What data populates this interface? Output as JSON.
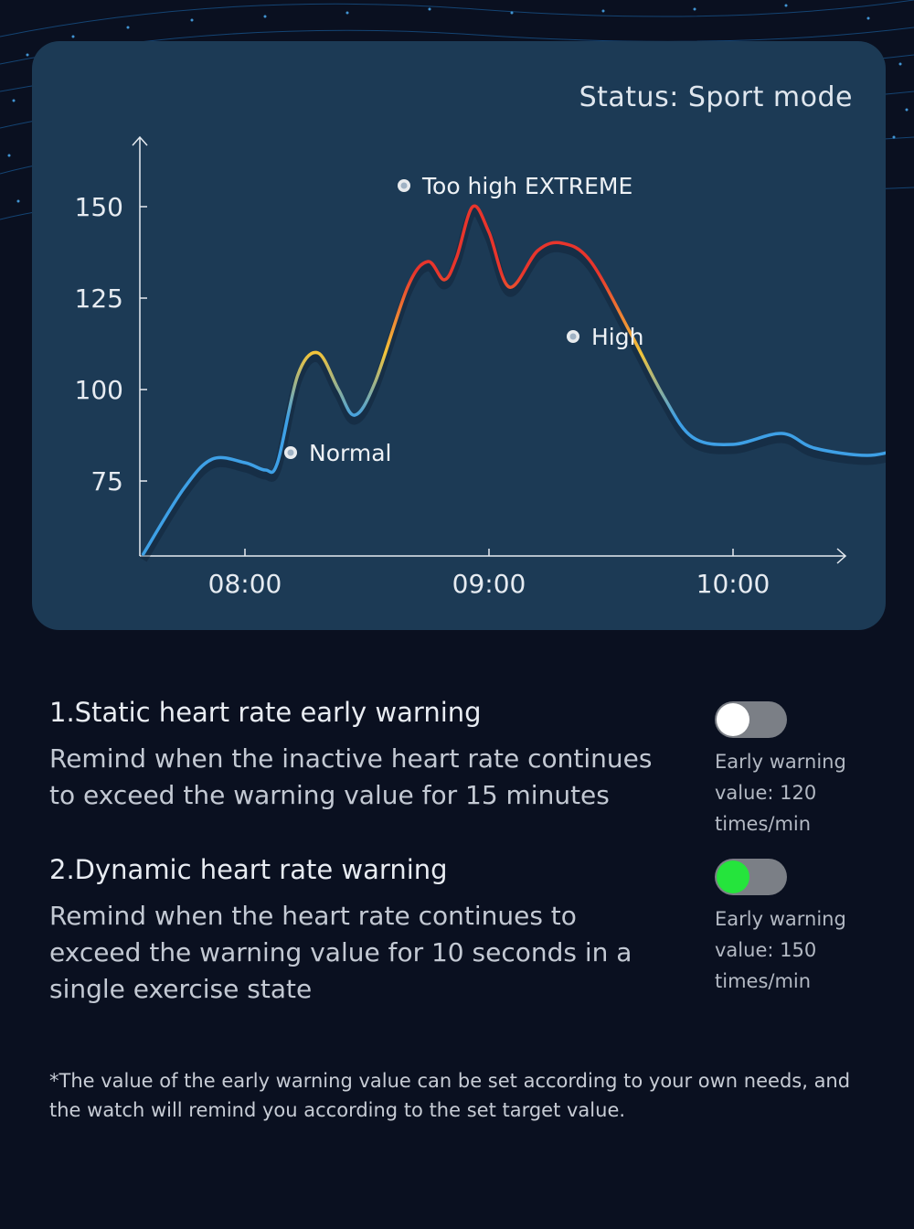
{
  "chart_card": {
    "status": "Status: Sport mode"
  },
  "chart_data": {
    "type": "line",
    "x_ticks": [
      "08:00",
      "09:00",
      "10:00"
    ],
    "y_ticks": [
      150,
      125,
      100,
      75
    ],
    "annotations": [
      {
        "label": "Too high EXTREME"
      },
      {
        "label": "High"
      },
      {
        "label": "Normal"
      }
    ],
    "series": [
      {
        "points": [
          [
            "07:35",
            55
          ],
          [
            "07:45",
            73
          ],
          [
            "07:52",
            81
          ],
          [
            "08:00",
            80
          ],
          [
            "08:05",
            78
          ],
          [
            "08:08",
            80
          ],
          [
            "08:13",
            104
          ],
          [
            "08:18",
            110
          ],
          [
            "08:23",
            100
          ],
          [
            "08:27",
            93
          ],
          [
            "08:32",
            102
          ],
          [
            "08:40",
            128
          ],
          [
            "08:45",
            135
          ],
          [
            "08:49",
            130
          ],
          [
            "08:52",
            136
          ],
          [
            "08:56",
            150
          ],
          [
            "09:00",
            143
          ],
          [
            "09:05",
            128
          ],
          [
            "09:12",
            138
          ],
          [
            "09:18",
            140
          ],
          [
            "09:25",
            135
          ],
          [
            "09:35",
            115
          ],
          [
            "09:43",
            98
          ],
          [
            "09:50",
            87
          ],
          [
            "10:00",
            85
          ],
          [
            "10:12",
            88
          ],
          [
            "10:20",
            84
          ],
          [
            "10:33",
            82
          ],
          [
            "10:42",
            84
          ]
        ]
      }
    ],
    "colors": {
      "normal": "#3ea0e6",
      "high": "#f2c43a",
      "extreme": "#e8352c"
    }
  },
  "warnings": [
    {
      "title": "1.Static heart rate early warning",
      "description": "Remind when the inactive heart rate continues to exceed the warning value for 15 minutes",
      "toggle_state": "off",
      "early_warning_label": "Early warning",
      "early_warning_value": "value: 120 times/min"
    },
    {
      "title": "2.Dynamic heart rate warning",
      "description": "Remind when the heart rate continues to exceed the warning value for 10 seconds in a single exercise state",
      "toggle_state": "on",
      "early_warning_label": "Early warning",
      "early_warning_value": "value: 150 times/min"
    }
  ],
  "footnote": "*The value of the early warning value can be set according to your own needs, and the watch will remind you according to the set target value."
}
